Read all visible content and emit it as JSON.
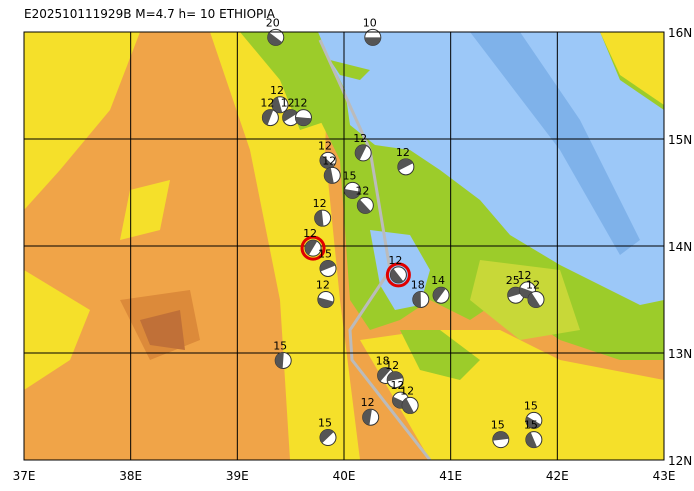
{
  "header": {
    "title": "E202510111929B  M=4.7  h= 10  ETHIOPIA"
  },
  "lon_ticks": [
    {
      "value": 37,
      "label": "37E"
    },
    {
      "value": 38,
      "label": "38E"
    },
    {
      "value": 39,
      "label": "39E"
    },
    {
      "value": 40,
      "label": "40E"
    },
    {
      "value": 41,
      "label": "41E"
    },
    {
      "value": 42,
      "label": "42E"
    },
    {
      "value": 43,
      "label": "43E"
    }
  ],
  "lat_ticks": [
    {
      "value": 12,
      "label": "12N"
    },
    {
      "value": 13,
      "label": "13N"
    },
    {
      "value": 14,
      "label": "14N"
    },
    {
      "value": 15,
      "label": "15N"
    },
    {
      "value": 16,
      "label": "16N"
    }
  ],
  "events": [
    {
      "lon": 40.27,
      "lat": 15.95,
      "depth": 10,
      "recent": false
    },
    {
      "lon": 39.36,
      "lat": 15.95,
      "depth": 20,
      "recent": false
    },
    {
      "lon": 39.4,
      "lat": 15.32,
      "depth": 12,
      "recent": false
    },
    {
      "lon": 39.31,
      "lat": 15.2,
      "depth": 12,
      "recent": false
    },
    {
      "lon": 39.5,
      "lat": 15.2,
      "depth": 12,
      "recent": false
    },
    {
      "lon": 39.62,
      "lat": 15.2,
      "depth": 12,
      "recent": false
    },
    {
      "lon": 39.85,
      "lat": 14.8,
      "depth": 12,
      "recent": false
    },
    {
      "lon": 39.89,
      "lat": 14.66,
      "depth": 12,
      "recent": false
    },
    {
      "lon": 40.18,
      "lat": 14.87,
      "depth": 12,
      "recent": false
    },
    {
      "lon": 40.58,
      "lat": 14.74,
      "depth": 12,
      "recent": false
    },
    {
      "lon": 40.08,
      "lat": 14.52,
      "depth": 15,
      "recent": false
    },
    {
      "lon": 40.2,
      "lat": 14.38,
      "depth": 12,
      "recent": false
    },
    {
      "lon": 39.8,
      "lat": 14.26,
      "depth": 12,
      "recent": false
    },
    {
      "lon": 39.71,
      "lat": 13.98,
      "depth": 12,
      "recent": true
    },
    {
      "lon": 39.85,
      "lat": 13.79,
      "depth": 15,
      "recent": false
    },
    {
      "lon": 39.83,
      "lat": 13.5,
      "depth": 12,
      "recent": false
    },
    {
      "lon": 40.51,
      "lat": 13.73,
      "depth": 12,
      "recent": true
    },
    {
      "lon": 40.72,
      "lat": 13.5,
      "depth": 18,
      "recent": false
    },
    {
      "lon": 40.91,
      "lat": 13.54,
      "depth": 14,
      "recent": false
    },
    {
      "lon": 41.61,
      "lat": 13.54,
      "depth": 25,
      "recent": false
    },
    {
      "lon": 41.72,
      "lat": 13.59,
      "depth": 12,
      "recent": false
    },
    {
      "lon": 41.8,
      "lat": 13.5,
      "depth": 12,
      "recent": false
    },
    {
      "lon": 39.43,
      "lat": 12.93,
      "depth": 15,
      "recent": false
    },
    {
      "lon": 40.39,
      "lat": 12.79,
      "depth": 18,
      "recent": false
    },
    {
      "lon": 40.48,
      "lat": 12.75,
      "depth": 12,
      "recent": false
    },
    {
      "lon": 40.53,
      "lat": 12.56,
      "depth": 12,
      "recent": false
    },
    {
      "lon": 40.62,
      "lat": 12.51,
      "depth": 12,
      "recent": false
    },
    {
      "lon": 40.25,
      "lat": 12.4,
      "depth": 12,
      "recent": false
    },
    {
      "lon": 39.85,
      "lat": 12.21,
      "depth": 15,
      "recent": false
    },
    {
      "lon": 41.47,
      "lat": 12.19,
      "depth": 15,
      "recent": false
    },
    {
      "lon": 41.78,
      "lat": 12.37,
      "depth": 15,
      "recent": false
    },
    {
      "lon": 41.78,
      "lat": 12.19,
      "depth": 15,
      "recent": false
    }
  ]
}
